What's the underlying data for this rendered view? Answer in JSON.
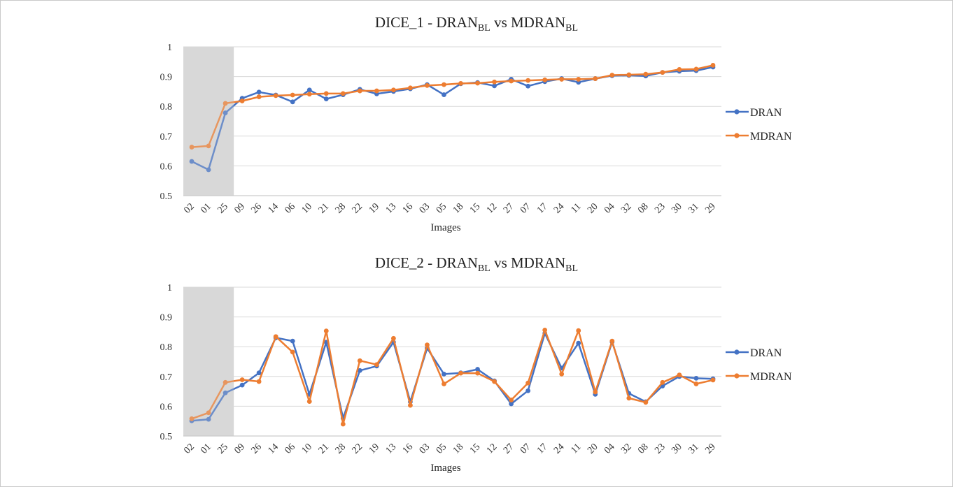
{
  "chart_data": [
    {
      "type": "line",
      "title": "DICE_1 - DRAN",
      "title_sub1": "BL",
      "title_mid": " vs MDRAN",
      "title_sub2": "BL",
      "xlabel": "Images",
      "ylabel": "",
      "ylim": [
        0.5,
        1
      ],
      "yticks": [
        "0.5",
        "0.6",
        "0.7",
        "0.8",
        "0.9",
        "1"
      ],
      "grid": true,
      "legend_position": "right",
      "highlight": {
        "from_index": 0,
        "to_index": 2,
        "color": "#d9d9d9"
      },
      "categories": [
        "02",
        "01",
        "25",
        "09",
        "26",
        "14",
        "06",
        "10",
        "21",
        "28",
        "22",
        "19",
        "13",
        "16",
        "03",
        "05",
        "18",
        "15",
        "12",
        "27",
        "07",
        "17",
        "24",
        "11",
        "20",
        "04",
        "32",
        "08",
        "23",
        "30",
        "31",
        "29"
      ],
      "series": [
        {
          "name": "DRAN",
          "color": "#4472c4",
          "values": [
            0.615,
            0.587,
            0.778,
            0.827,
            0.848,
            0.838,
            0.815,
            0.855,
            0.825,
            0.839,
            0.857,
            0.842,
            0.85,
            0.859,
            0.873,
            0.839,
            0.876,
            0.88,
            0.869,
            0.891,
            0.868,
            0.883,
            0.893,
            0.881,
            0.893,
            0.903,
            0.904,
            0.902,
            0.914,
            0.918,
            0.92,
            0.932
          ]
        },
        {
          "name": "MDRAN",
          "color": "#ed7d31",
          "values": [
            0.663,
            0.667,
            0.81,
            0.818,
            0.832,
            0.836,
            0.838,
            0.841,
            0.843,
            0.843,
            0.852,
            0.852,
            0.855,
            0.862,
            0.87,
            0.873,
            0.877,
            0.878,
            0.882,
            0.885,
            0.887,
            0.889,
            0.891,
            0.891,
            0.893,
            0.905,
            0.906,
            0.908,
            0.914,
            0.924,
            0.925,
            0.938
          ]
        }
      ]
    },
    {
      "type": "line",
      "title": "DICE_2 - DRAN",
      "title_sub1": "BL",
      "title_mid": " vs MDRAN",
      "title_sub2": "BL",
      "xlabel": "Images",
      "ylabel": "",
      "ylim": [
        0.5,
        1
      ],
      "yticks": [
        "0.5",
        "0.6",
        "0.7",
        "0.8",
        "0.9",
        "1"
      ],
      "grid": true,
      "legend_position": "right",
      "highlight": {
        "from_index": 0,
        "to_index": 2,
        "color": "#d9d9d9"
      },
      "categories": [
        "02",
        "01",
        "25",
        "09",
        "26",
        "14",
        "06",
        "10",
        "21",
        "28",
        "22",
        "19",
        "13",
        "16",
        "03",
        "05",
        "18",
        "15",
        "12",
        "27",
        "07",
        "17",
        "24",
        "11",
        "20",
        "04",
        "32",
        "08",
        "23",
        "30",
        "31",
        "29"
      ],
      "series": [
        {
          "name": "DRAN",
          "color": "#4472c4",
          "values": [
            0.551,
            0.556,
            0.645,
            0.671,
            0.712,
            0.83,
            0.819,
            0.64,
            0.815,
            0.56,
            0.72,
            0.735,
            0.815,
            0.615,
            0.795,
            0.708,
            0.712,
            0.724,
            0.685,
            0.608,
            0.652,
            0.845,
            0.728,
            0.812,
            0.64,
            0.816,
            0.643,
            0.615,
            0.668,
            0.7,
            0.694,
            0.692
          ]
        },
        {
          "name": "MDRAN",
          "color": "#ed7d31",
          "values": [
            0.558,
            0.578,
            0.68,
            0.689,
            0.683,
            0.834,
            0.782,
            0.616,
            0.853,
            0.54,
            0.753,
            0.74,
            0.828,
            0.603,
            0.806,
            0.675,
            0.711,
            0.711,
            0.683,
            0.621,
            0.678,
            0.856,
            0.708,
            0.854,
            0.648,
            0.819,
            0.627,
            0.613,
            0.68,
            0.705,
            0.675,
            0.688
          ]
        }
      ]
    }
  ]
}
